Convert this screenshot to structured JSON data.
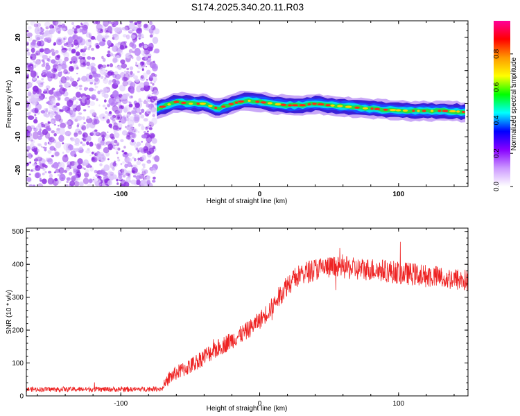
{
  "title": "S174.2025.340.20.11.R03",
  "chart_data": [
    {
      "type": "heatmap",
      "xlabel": "Height of straight line (km)",
      "ylabel": "Frequency (Hz)",
      "xlim": [
        -168,
        150
      ],
      "ylim": [
        -25,
        25
      ],
      "xticks": [
        -100,
        0,
        100
      ],
      "yticks": [
        -20,
        -10,
        0,
        10,
        20
      ],
      "noise_region_x": [
        -168,
        -74
      ],
      "signal_region_x": [
        -74,
        150
      ],
      "signal_frequency_trend": {
        "x": [
          -74,
          -60,
          -50,
          -40,
          -30,
          -20,
          -10,
          0,
          10,
          20,
          30,
          40,
          50,
          60,
          70,
          80,
          90,
          100,
          110,
          120,
          130,
          140,
          150
        ],
        "y": [
          -1.5,
          0.5,
          0,
          0,
          -1.5,
          0,
          1,
          0.5,
          0,
          -0.5,
          -0.5,
          0,
          -0.5,
          -0.8,
          -1.2,
          -1.5,
          -1.8,
          -2,
          -2.2,
          -2.2,
          -2.2,
          -2.3,
          -2.6
        ]
      },
      "colorbar": {
        "label": "Normalized spectral amplitude",
        "range": [
          0,
          1
        ],
        "ticks": [
          "0.0",
          "0.2",
          "0.4",
          "0.6",
          "0.8"
        ],
        "colors": [
          "#ffffff",
          "#cc99ff",
          "#8800ff",
          "#0000ff",
          "#00ffff",
          "#00ff00",
          "#ffff00",
          "#ff9900",
          "#ff0000",
          "#ff0099"
        ]
      }
    },
    {
      "type": "line",
      "xlabel": "Height of straight line (km)",
      "ylabel": "SNR (10 * v/v)",
      "xlim": [
        -168,
        150
      ],
      "ylim": [
        0,
        510
      ],
      "xticks": [
        -100,
        0,
        100
      ],
      "yticks": [
        0,
        100,
        200,
        300,
        400,
        500
      ],
      "color": "#ee2222",
      "series": [
        {
          "name": "SNR",
          "x": [
            -168,
            -150,
            -120,
            -90,
            -70,
            -65,
            -60,
            -50,
            -40,
            -30,
            -20,
            -10,
            0,
            10,
            20,
            30,
            40,
            50,
            60,
            70,
            80,
            90,
            100,
            110,
            120,
            130,
            140,
            150
          ],
          "y": [
            20,
            20,
            20,
            20,
            22,
            55,
            70,
            90,
            120,
            145,
            170,
            195,
            230,
            275,
            340,
            370,
            385,
            390,
            390,
            385,
            385,
            380,
            375,
            370,
            365,
            360,
            355,
            350
          ],
          "spread": [
            15,
            15,
            15,
            15,
            15,
            45,
            45,
            50,
            55,
            55,
            55,
            55,
            55,
            60,
            70,
            70,
            70,
            70,
            70,
            70,
            70,
            70,
            70,
            70,
            70,
            70,
            70,
            70
          ]
        }
      ]
    }
  ]
}
